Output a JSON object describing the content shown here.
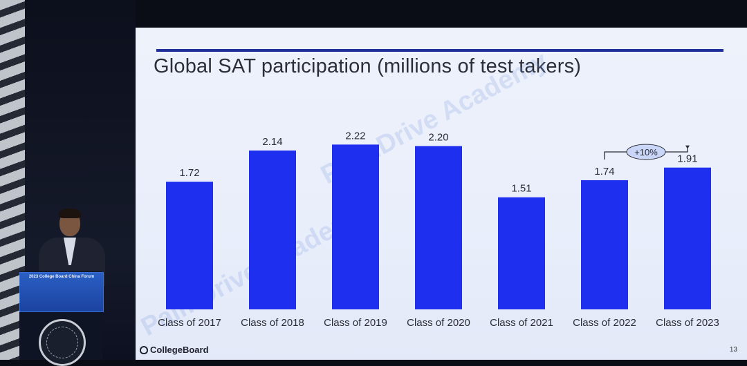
{
  "slide": {
    "title": "Global SAT participation (millions of test takers)",
    "footer_logo": "CollegeBoard",
    "page_number": "13",
    "watermark": "PalmDrive Academy"
  },
  "podium": {
    "banner_line1": "2023 College Board China Forum"
  },
  "chart_data": {
    "type": "bar",
    "title": "Global SAT participation (millions of test takers)",
    "categories": [
      "Class of 2017",
      "Class of 2018",
      "Class of 2019",
      "Class of 2020",
      "Class of 2021",
      "Class of 2022",
      "Class of 2023"
    ],
    "values": [
      1.72,
      2.14,
      2.22,
      2.2,
      1.51,
      1.74,
      1.91
    ],
    "value_labels": [
      "1.72",
      "2.14",
      "2.22",
      "2.20",
      "1.51",
      "1.74",
      "1.91"
    ],
    "ylim": [
      0,
      2.4
    ],
    "grid": false,
    "bar_color": "#1f2ff0",
    "annotation": {
      "text": "+10%",
      "from": "Class of 2022",
      "to": "Class of 2023"
    }
  }
}
